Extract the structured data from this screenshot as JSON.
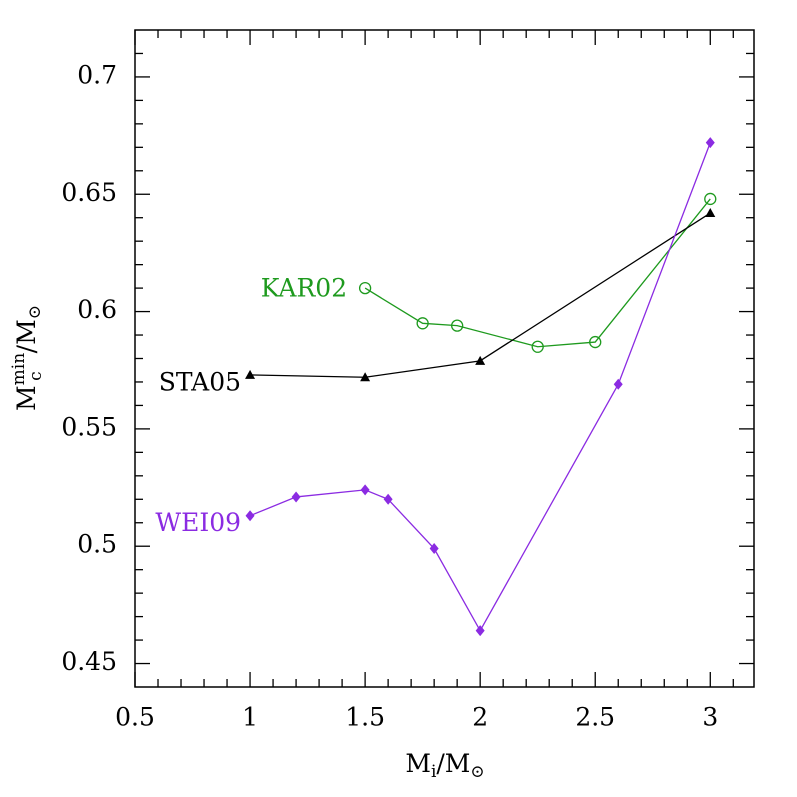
{
  "chart_data": {
    "type": "line",
    "xlabel": {
      "base": "M",
      "sub": "i",
      "slash": "/M",
      "sun": "⊙"
    },
    "ylabel": {
      "base": "M",
      "sub": "c",
      "sup": "min",
      "slash": "/M",
      "sun": "⊙"
    },
    "xlim": [
      0.5,
      3.19
    ],
    "ylim": [
      0.44,
      0.72
    ],
    "xticks": [
      0.5,
      1,
      1.5,
      2,
      2.5,
      3
    ],
    "yticks": [
      0.45,
      0.5,
      0.55,
      0.6,
      0.65,
      0.7
    ],
    "series": [
      {
        "name": "KAR02",
        "color": "#1e9a1e",
        "marker": "open-circle",
        "x": [
          1.5,
          1.75,
          1.9,
          2.25,
          2.5,
          3.0
        ],
        "values": [
          0.61,
          0.595,
          0.594,
          0.585,
          0.587,
          0.648
        ]
      },
      {
        "name": "STA05",
        "color": "#000000",
        "marker": "triangle",
        "x": [
          1.0,
          1.5,
          2.0,
          3.0
        ],
        "values": [
          0.573,
          0.572,
          0.579,
          0.642
        ]
      },
      {
        "name": "WEI09",
        "color": "#8b2be2",
        "marker": "diamond",
        "x": [
          1.0,
          1.2,
          1.5,
          1.6,
          1.8,
          2.0,
          2.6,
          3.0
        ],
        "values": [
          0.513,
          0.521,
          0.524,
          0.52,
          0.499,
          0.464,
          0.569,
          0.672
        ]
      }
    ]
  }
}
